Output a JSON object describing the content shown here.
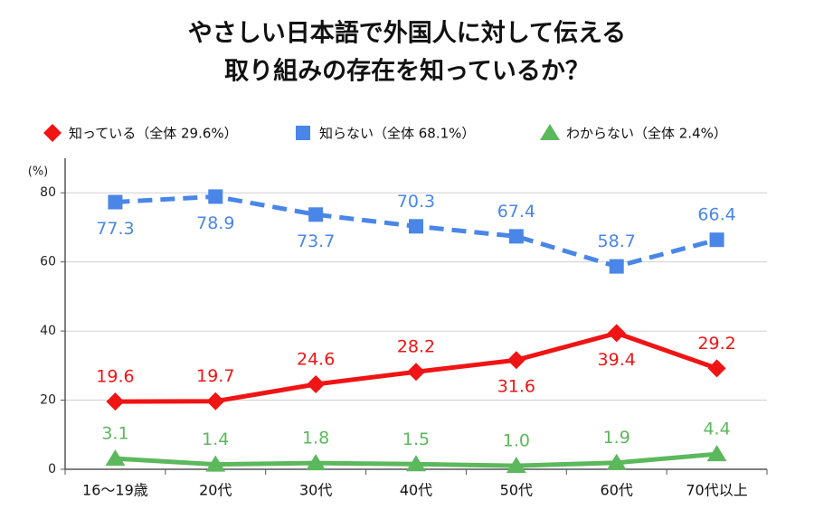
{
  "chart_data": {
    "type": "line",
    "title": [
      "やさしい日本語で外国人に対して伝える",
      "取り組みの存在を知っているか？"
    ],
    "y_label": "(%)",
    "categories": [
      "16〜19歳",
      "20代",
      "30代",
      "40代",
      "50代",
      "60代",
      "70代以上"
    ],
    "series": [
      {
        "name": "知っている（全体 29.6%）",
        "color": "#f01414",
        "marker": "diamond",
        "dashed": false,
        "values": [
          19.6,
          19.7,
          24.6,
          28.2,
          31.6,
          39.4,
          29.2
        ],
        "value_labels": [
          "19.6",
          "19.7",
          "24.6",
          "28.2",
          "31.6",
          "39.4",
          "29.2"
        ]
      },
      {
        "name": "知らない（全体 68.1%）",
        "color": "#4a86e8",
        "marker": "square",
        "dashed": true,
        "values": [
          77.3,
          78.9,
          73.7,
          70.3,
          67.4,
          58.7,
          66.4
        ],
        "value_labels": [
          "77.3",
          "78.9",
          "73.7",
          "70.3",
          "67.4",
          "58.7",
          "66.4"
        ]
      },
      {
        "name": "わからない（全体 2.4%）",
        "color": "#5cb85c",
        "marker": "triangle",
        "dashed": false,
        "values": [
          3.1,
          1.4,
          1.8,
          1.5,
          1.0,
          1.9,
          4.4
        ],
        "value_labels": [
          "3.1",
          "1.4",
          "1.8",
          "1.5",
          "1.0",
          "1.9",
          "4.4"
        ]
      }
    ],
    "ylim": [
      0,
      90
    ],
    "yticks": [
      0,
      20,
      40,
      60,
      80
    ],
    "grid": true
  }
}
